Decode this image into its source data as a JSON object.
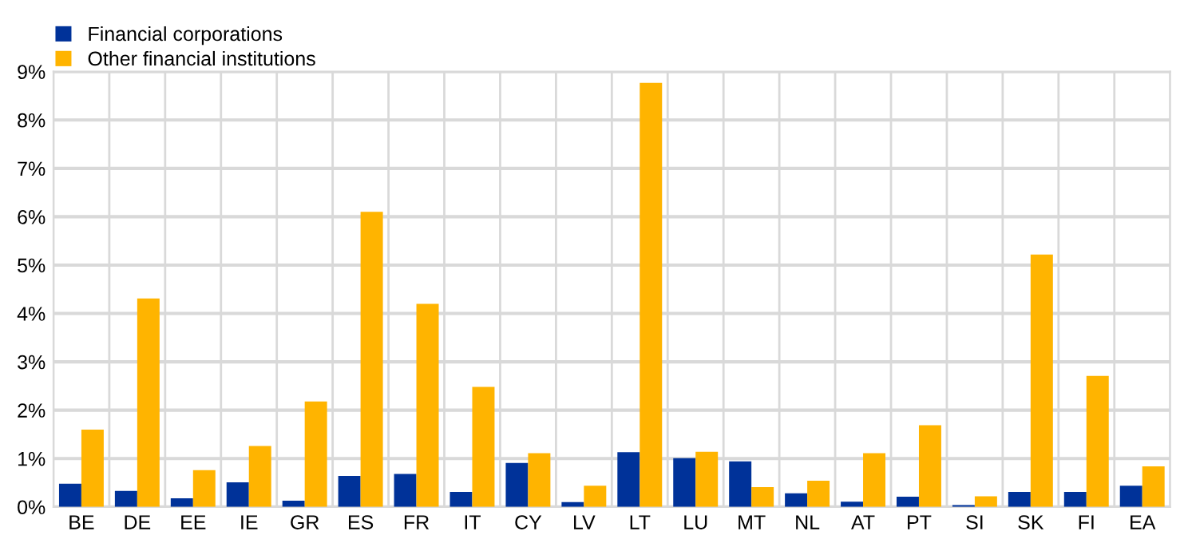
{
  "chart_data": {
    "type": "bar",
    "categories": [
      "BE",
      "DE",
      "EE",
      "IE",
      "GR",
      "ES",
      "FR",
      "IT",
      "CY",
      "LV",
      "LT",
      "LU",
      "MT",
      "NL",
      "AT",
      "PT",
      "SI",
      "SK",
      "FI",
      "EA"
    ],
    "series": [
      {
        "name": "Financial corporations",
        "color": "#003299",
        "values": [
          0.48,
          0.33,
          0.18,
          0.51,
          0.13,
          0.64,
          0.68,
          0.31,
          0.91,
          0.1,
          1.13,
          1.01,
          0.94,
          0.28,
          0.11,
          0.21,
          0.04,
          0.31,
          0.31,
          0.44
        ]
      },
      {
        "name": "Other financial institutions",
        "color": "#ffb400",
        "values": [
          1.6,
          4.31,
          0.76,
          1.26,
          2.18,
          6.1,
          4.2,
          2.48,
          1.11,
          0.44,
          8.77,
          1.14,
          0.41,
          0.54,
          1.11,
          1.69,
          0.22,
          5.22,
          2.71,
          0.84
        ]
      }
    ],
    "ylim": [
      0,
      9
    ],
    "yticks": [
      {
        "value": 0,
        "label": "0%"
      },
      {
        "value": 1,
        "label": "1%"
      },
      {
        "value": 2,
        "label": "2%"
      },
      {
        "value": 3,
        "label": "3%"
      },
      {
        "value": 4,
        "label": "4%"
      },
      {
        "value": 5,
        "label": "5%"
      },
      {
        "value": 6,
        "label": "6%"
      },
      {
        "value": 7,
        "label": "7%"
      },
      {
        "value": 8,
        "label": "8%"
      },
      {
        "value": 9,
        "label": "9%"
      }
    ],
    "grid": true,
    "legend": "top left"
  }
}
